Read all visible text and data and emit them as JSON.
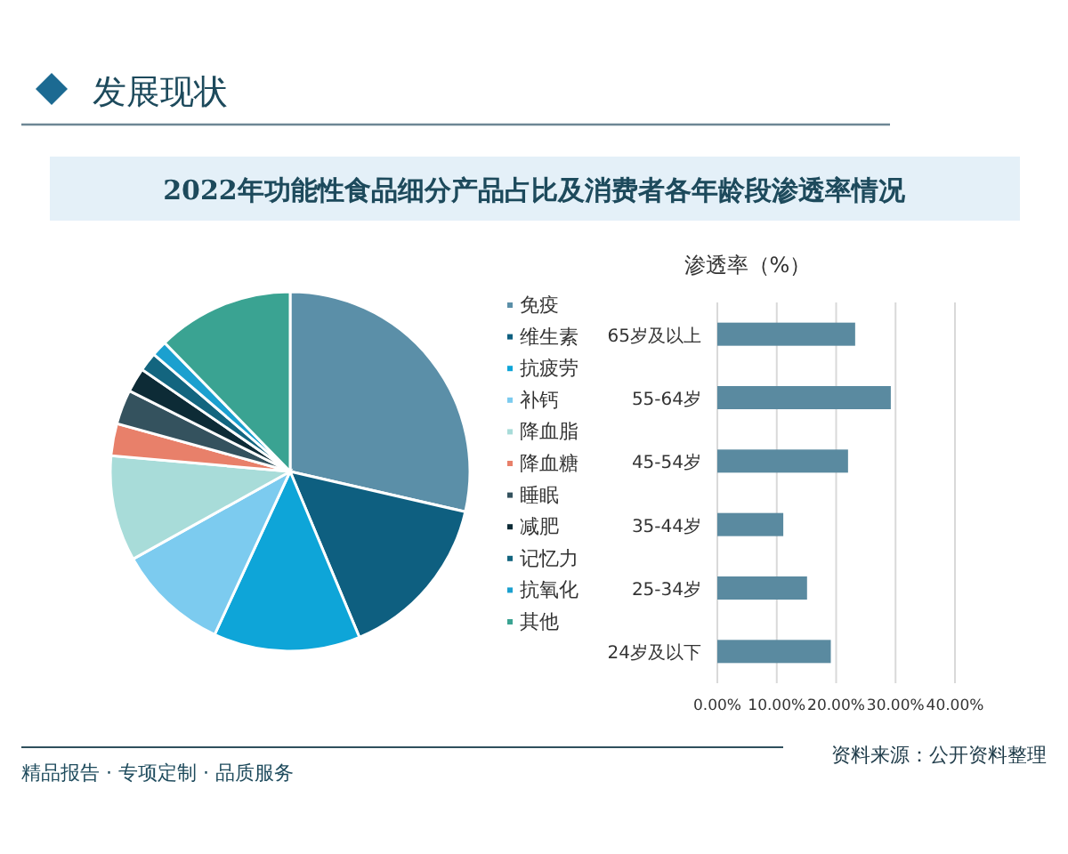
{
  "chart_data": [
    {
      "type": "pie",
      "title": "2022年功能性食品细分产品占比及消费者各年龄段渗透率情况",
      "annotations": [
        "发展现状",
        "资料来源：公开资料整理",
        "精品报告 · 专项定制 · 品质服务"
      ],
      "legend": "right",
      "categories": [
        "免疫",
        "维生素",
        "抗疲劳",
        "补钙",
        "降血脂",
        "降血糖",
        "睡眠",
        "减肥",
        "记忆力",
        "抗氧化",
        "其他"
      ],
      "values": [
        28.6,
        15.1,
        13.2,
        10.0,
        9.5,
        2.9,
        3.1,
        2.2,
        1.7,
        1.4,
        12.3
      ],
      "colors": [
        "#5b8fa8",
        "#0e5f80",
        "#0ea5d8",
        "#7ccbef",
        "#a8dcd9",
        "#e8806a",
        "#34525e",
        "#0d2b36",
        "#13657f",
        "#1ba0cf",
        "#3aa392"
      ]
    },
    {
      "type": "bar",
      "orientation": "horizontal",
      "title": "渗透率（%）",
      "categories": [
        "65岁及以上",
        "55-64岁",
        "45-54岁",
        "35-44岁",
        "25-34岁",
        "24岁及以下"
      ],
      "values": [
        23.2,
        29.2,
        22.0,
        11.1,
        15.1,
        19.1
      ],
      "color": "#5a8aa0",
      "xlim": [
        0,
        40
      ],
      "xticks": [
        {
          "value": 0,
          "label": "0.00%"
        },
        {
          "value": 10,
          "label": "10.00%"
        },
        {
          "value": 20,
          "label": "20.00%"
        },
        {
          "value": 30,
          "label": "30.00%"
        },
        {
          "value": 40,
          "label": "40.00%"
        }
      ],
      "grid": "x"
    }
  ]
}
